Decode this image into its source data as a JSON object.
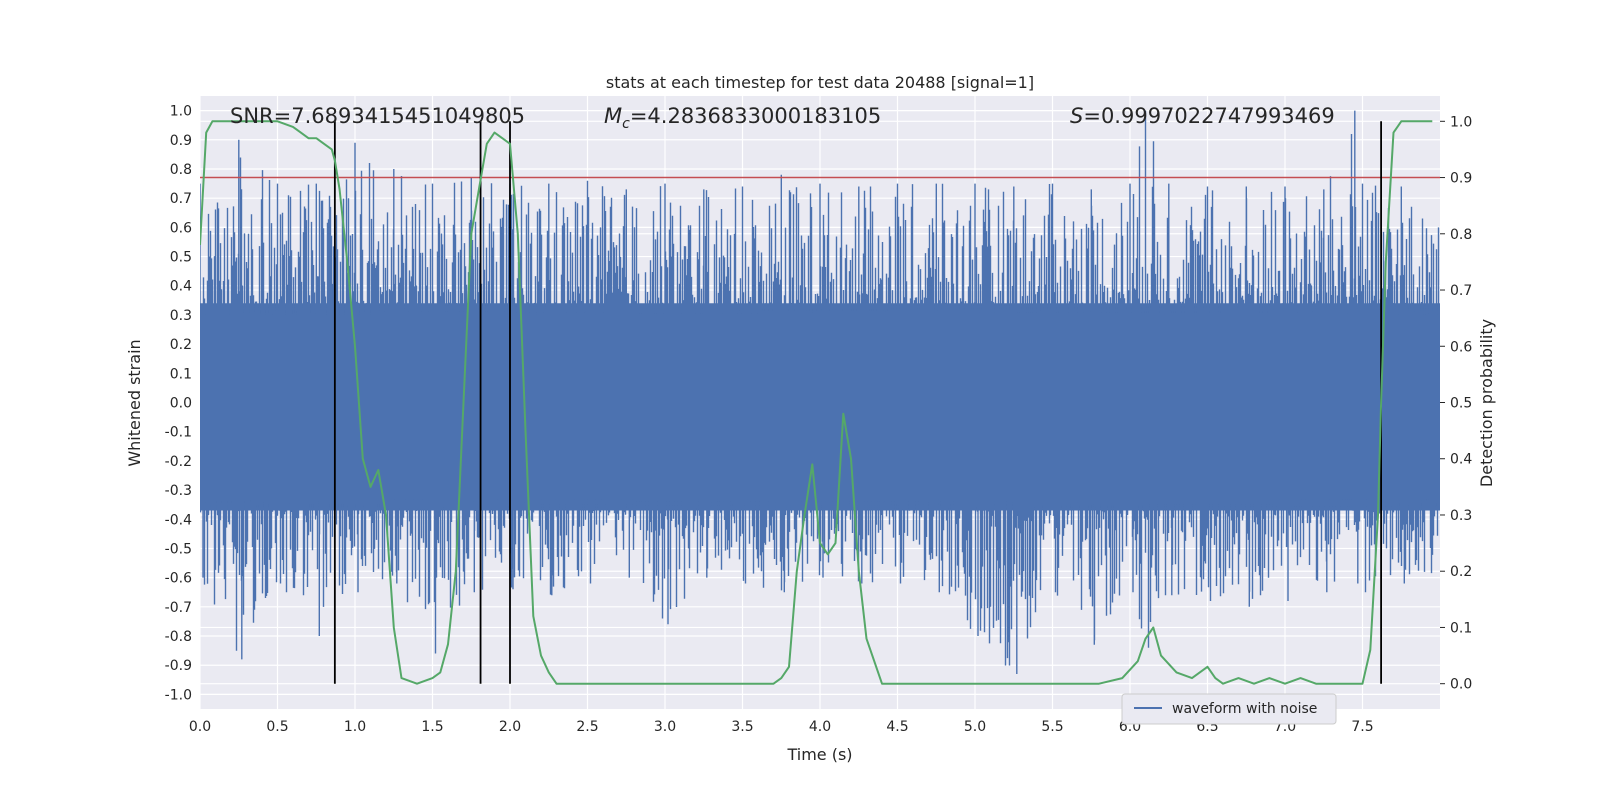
{
  "chart_data": {
    "type": "line",
    "title": "stats at each timestep for test data 20488 [signal=1]",
    "xlabel": "Time (s)",
    "ylabel": "Whitened strain",
    "y2label": "Detection probability",
    "xlim": [
      0.0,
      8.0
    ],
    "ylim": [
      -1.05,
      1.05
    ],
    "y2lim": [
      -0.045,
      1.045
    ],
    "xticks": [
      "0.0",
      "0.5",
      "1.0",
      "1.5",
      "2.0",
      "2.5",
      "3.0",
      "3.5",
      "4.0",
      "4.5",
      "5.0",
      "5.5",
      "6.0",
      "6.5",
      "7.0",
      "7.5"
    ],
    "yticks": [
      "-1.0",
      "-0.9",
      "-0.8",
      "-0.7",
      "-0.6",
      "-0.5",
      "-0.4",
      "-0.3",
      "-0.2",
      "-0.1",
      "0.0",
      "0.1",
      "0.2",
      "0.3",
      "0.4",
      "0.5",
      "0.6",
      "0.7",
      "0.8",
      "0.9",
      "1.0"
    ],
    "y2ticks": [
      "0.0",
      "0.1",
      "0.2",
      "0.3",
      "0.4",
      "0.5",
      "0.6",
      "0.7",
      "0.8",
      "0.9",
      "1.0"
    ],
    "annotations": {
      "snr": "SNR=7.6893415451049805",
      "mc_symbol": "M",
      "mc_sub": "c",
      "mc_value": "=4.2836833000183105",
      "s_symbol": "S",
      "s_value": "=0.9997022747993469"
    },
    "legend": {
      "label": "waveform with noise",
      "position": "lower-right"
    },
    "colors": {
      "waveform": "#4c72b0",
      "probability": "#55a868",
      "threshold": "#c44e52",
      "markers": "#000000",
      "background": "#eaeaf2"
    },
    "threshold_y2": 0.9,
    "vertical_markers_x": [
      0.87,
      1.81,
      2.0,
      7.62
    ],
    "waveform_envelope": {
      "x": [
        0.0,
        0.25,
        0.5,
        0.75,
        1.0,
        1.25,
        1.5,
        1.75,
        2.0,
        2.25,
        2.5,
        2.75,
        3.0,
        3.25,
        3.5,
        3.75,
        4.0,
        4.25,
        4.5,
        4.75,
        5.0,
        5.25,
        5.5,
        5.75,
        6.0,
        6.1,
        6.25,
        6.5,
        6.75,
        7.0,
        7.25,
        7.45,
        7.5,
        7.75,
        7.99
      ],
      "upper": [
        0.75,
        0.9,
        0.75,
        0.75,
        0.89,
        0.8,
        0.75,
        0.77,
        0.75,
        0.75,
        0.76,
        0.73,
        0.75,
        0.73,
        0.74,
        0.78,
        0.75,
        0.74,
        0.75,
        0.75,
        0.75,
        0.74,
        0.75,
        0.73,
        0.75,
        1.0,
        0.75,
        0.74,
        0.74,
        0.74,
        0.73,
        1.0,
        0.75,
        0.74,
        0.6
      ],
      "lower": [
        -0.6,
        -0.88,
        -0.62,
        -0.8,
        -0.65,
        -0.62,
        -0.86,
        -0.65,
        -0.64,
        -0.66,
        -0.62,
        -0.6,
        -0.76,
        -0.6,
        -0.62,
        -0.65,
        -0.6,
        -0.62,
        -0.62,
        -0.65,
        -0.8,
        -0.93,
        -0.65,
        -0.83,
        -0.65,
        -0.84,
        -0.66,
        -0.68,
        -0.7,
        -0.68,
        -0.65,
        -0.62,
        -0.65,
        -0.62,
        -0.58
      ]
    },
    "detection_probability": {
      "x": [
        0.0,
        0.04,
        0.08,
        0.12,
        0.2,
        0.3,
        0.4,
        0.5,
        0.6,
        0.65,
        0.7,
        0.75,
        0.8,
        0.85,
        0.87,
        0.9,
        0.95,
        1.0,
        1.05,
        1.1,
        1.15,
        1.2,
        1.25,
        1.3,
        1.4,
        1.5,
        1.55,
        1.6,
        1.65,
        1.7,
        1.75,
        1.8,
        1.85,
        1.9,
        1.95,
        2.0,
        2.05,
        2.1,
        2.15,
        2.2,
        2.25,
        2.3,
        2.4,
        2.5,
        2.75,
        3.0,
        3.1,
        3.2,
        3.3,
        3.5,
        3.7,
        3.75,
        3.8,
        3.85,
        3.9,
        3.95,
        4.0,
        4.05,
        4.1,
        4.15,
        4.2,
        4.25,
        4.3,
        4.4,
        4.5,
        4.75,
        5.0,
        5.5,
        5.8,
        5.95,
        6.05,
        6.1,
        6.15,
        6.2,
        6.3,
        6.4,
        6.5,
        6.55,
        6.6,
        6.7,
        6.8,
        6.9,
        7.0,
        7.1,
        7.2,
        7.3,
        7.4,
        7.45,
        7.5,
        7.55,
        7.6,
        7.62,
        7.65,
        7.7,
        7.75,
        7.8,
        7.85,
        7.9,
        7.95
      ],
      "y": [
        0.78,
        0.98,
        1.0,
        1.0,
        1.0,
        1.0,
        1.0,
        1.0,
        0.99,
        0.98,
        0.97,
        0.97,
        0.96,
        0.95,
        0.93,
        0.88,
        0.75,
        0.6,
        0.4,
        0.35,
        0.38,
        0.3,
        0.1,
        0.01,
        0.0,
        0.01,
        0.02,
        0.07,
        0.2,
        0.5,
        0.8,
        0.88,
        0.96,
        0.98,
        0.97,
        0.96,
        0.8,
        0.45,
        0.12,
        0.05,
        0.02,
        0.0,
        0.0,
        0.0,
        0.0,
        0.0,
        0.0,
        0.0,
        0.0,
        0.0,
        0.0,
        0.01,
        0.03,
        0.2,
        0.3,
        0.39,
        0.25,
        0.23,
        0.25,
        0.48,
        0.4,
        0.2,
        0.08,
        0.0,
        0.0,
        0.0,
        0.0,
        0.0,
        0.0,
        0.01,
        0.04,
        0.08,
        0.1,
        0.05,
        0.02,
        0.01,
        0.03,
        0.01,
        0.0,
        0.01,
        0.0,
        0.01,
        0.0,
        0.01,
        0.0,
        0.0,
        0.0,
        0.0,
        0.0,
        0.06,
        0.3,
        0.5,
        0.75,
        0.98,
        1.0,
        1.0,
        1.0,
        1.0,
        1.0
      ]
    }
  }
}
